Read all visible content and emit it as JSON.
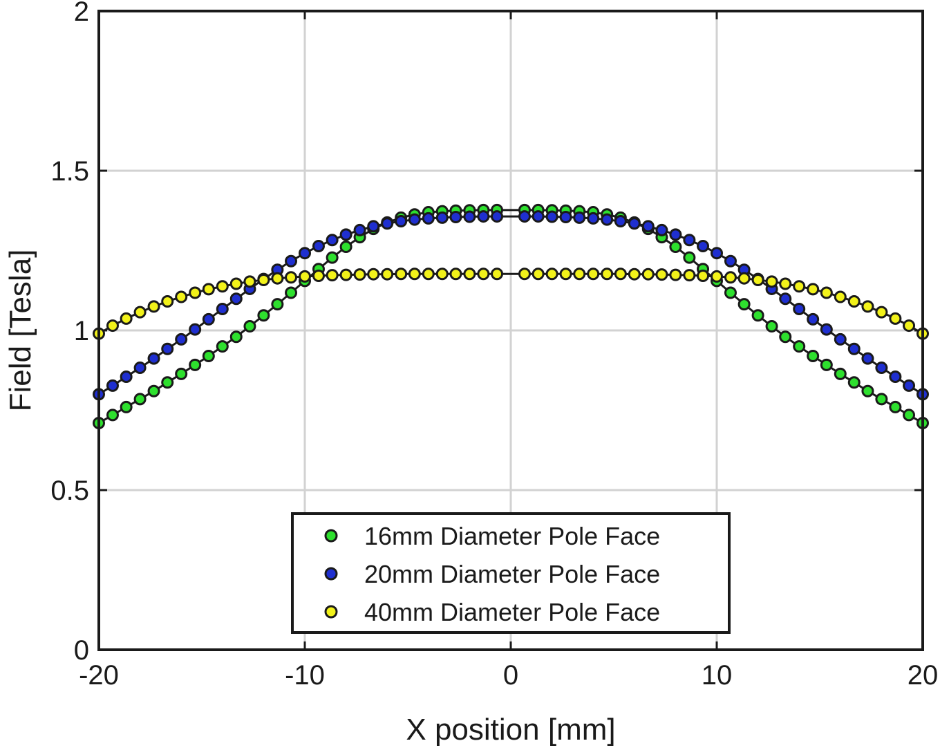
{
  "chart_data": {
    "type": "scatter",
    "title": "",
    "xlabel": "X position [mm]",
    "ylabel": "Field [Tesla]",
    "xlim": [
      -20,
      20
    ],
    "ylim": [
      0,
      2
    ],
    "xticks": [
      -20,
      -10,
      0,
      10,
      20
    ],
    "xtick_labels": [
      "-20",
      "-10",
      "0",
      "10",
      "20"
    ],
    "yticks": [
      0,
      0.5,
      1,
      1.5,
      2
    ],
    "ytick_labels": [
      "0",
      "0.5",
      "1",
      "1.5",
      "2"
    ],
    "grid": true,
    "legend_position": "bottom-center",
    "x": [
      -20,
      -19.33,
      -18.67,
      -18,
      -17.33,
      -16.67,
      -16,
      -15.33,
      -14.67,
      -14,
      -13.33,
      -12.67,
      -12,
      -11.33,
      -10.67,
      -10,
      -9.33,
      -8.67,
      -8,
      -7.33,
      -6.67,
      -6,
      -5.33,
      -4.67,
      -4,
      -3.33,
      -2.67,
      -2,
      -1.33,
      -0.67,
      0.67,
      1.33,
      2,
      2.67,
      3.33,
      4,
      4.67,
      5.33,
      6,
      6.67,
      7.33,
      8,
      8.67,
      9.33,
      10,
      10.67,
      11.33,
      12,
      12.67,
      13.33,
      14,
      14.67,
      15.33,
      16,
      16.67,
      17.33,
      18,
      18.67,
      19.33,
      20
    ],
    "series": [
      {
        "name": "16mm Diameter Pole Face",
        "color": "#2ee02e",
        "values": [
          0.71,
          0.735,
          0.76,
          0.785,
          0.81,
          0.837,
          0.864,
          0.892,
          0.92,
          0.95,
          0.98,
          1.013,
          1.047,
          1.082,
          1.118,
          1.155,
          1.192,
          1.228,
          1.262,
          1.292,
          1.318,
          1.338,
          1.353,
          1.363,
          1.37,
          1.373,
          1.375,
          1.376,
          1.377,
          1.377,
          1.377,
          1.377,
          1.376,
          1.375,
          1.373,
          1.37,
          1.363,
          1.353,
          1.338,
          1.318,
          1.292,
          1.262,
          1.228,
          1.192,
          1.155,
          1.118,
          1.082,
          1.047,
          1.013,
          0.98,
          0.95,
          0.92,
          0.892,
          0.864,
          0.837,
          0.81,
          0.785,
          0.76,
          0.735,
          0.71
        ]
      },
      {
        "name": "20mm Diameter Pole Face",
        "color": "#1f2fd0",
        "values": [
          0.8,
          0.827,
          0.855,
          0.883,
          0.912,
          0.942,
          0.972,
          1.003,
          1.035,
          1.067,
          1.099,
          1.13,
          1.161,
          1.19,
          1.217,
          1.242,
          1.264,
          1.283,
          1.3,
          1.314,
          1.326,
          1.335,
          1.342,
          1.347,
          1.351,
          1.353,
          1.355,
          1.356,
          1.357,
          1.357,
          1.357,
          1.357,
          1.356,
          1.355,
          1.353,
          1.351,
          1.347,
          1.342,
          1.335,
          1.326,
          1.314,
          1.3,
          1.283,
          1.264,
          1.242,
          1.217,
          1.19,
          1.161,
          1.13,
          1.099,
          1.067,
          1.035,
          1.003,
          0.972,
          0.942,
          0.912,
          0.883,
          0.855,
          0.827,
          0.8
        ]
      },
      {
        "name": "40mm Diameter Pole Face",
        "color": "#f2f21a",
        "values": [
          0.99,
          1.015,
          1.037,
          1.057,
          1.075,
          1.091,
          1.105,
          1.118,
          1.129,
          1.138,
          1.146,
          1.153,
          1.158,
          1.163,
          1.166,
          1.169,
          1.171,
          1.173,
          1.174,
          1.175,
          1.176,
          1.176,
          1.177,
          1.177,
          1.177,
          1.177,
          1.177,
          1.177,
          1.177,
          1.177,
          1.177,
          1.177,
          1.177,
          1.177,
          1.177,
          1.177,
          1.177,
          1.177,
          1.176,
          1.176,
          1.175,
          1.174,
          1.173,
          1.171,
          1.169,
          1.166,
          1.163,
          1.158,
          1.153,
          1.146,
          1.138,
          1.129,
          1.118,
          1.105,
          1.091,
          1.075,
          1.057,
          1.037,
          1.015,
          0.99
        ]
      }
    ]
  }
}
